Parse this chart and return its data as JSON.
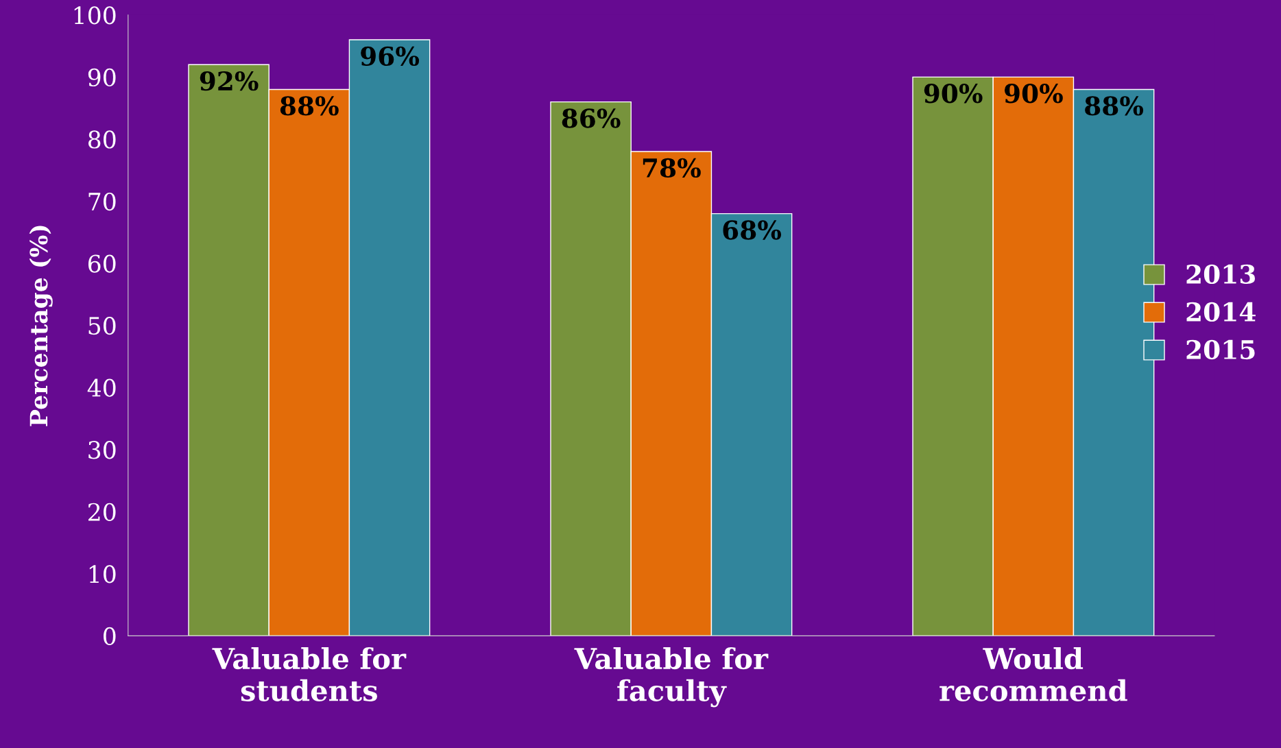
{
  "chart_data": {
    "type": "bar",
    "ylabel": "Percentage (%)",
    "categories": [
      "Valuable for\nstudents",
      "Valuable for\nfaculty",
      "Would\nrecommend"
    ],
    "series": [
      {
        "name": "2013",
        "color": "#77933c",
        "values": [
          92,
          86,
          90
        ],
        "value_labels": [
          "92%",
          "86%",
          "90%"
        ]
      },
      {
        "name": "2014",
        "color": "#e36c09",
        "values": [
          88,
          78,
          90
        ],
        "value_labels": [
          "88%",
          "78%",
          "90%"
        ]
      },
      {
        "name": "2015",
        "color": "#31859c",
        "values": [
          96,
          68,
          88
        ],
        "value_labels": [
          "96%",
          "68%",
          "88%"
        ]
      }
    ],
    "ylim": [
      0,
      100
    ],
    "yticks": [
      0,
      10,
      20,
      30,
      40,
      50,
      60,
      70,
      80,
      90,
      100
    ],
    "grid": false,
    "legend": "right"
  }
}
